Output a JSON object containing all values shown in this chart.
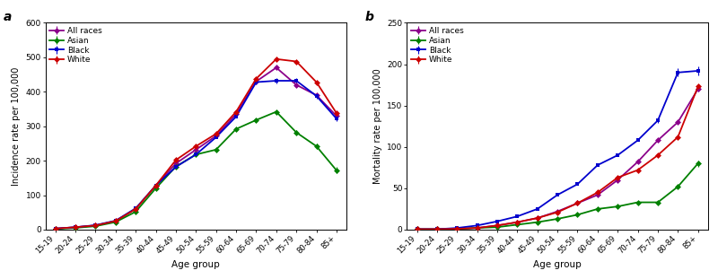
{
  "age_groups": [
    "15-19",
    "20-24",
    "25-29",
    "30-34",
    "35-39",
    "40-44",
    "45-49",
    "50-54",
    "55-59",
    "60-64",
    "65-69",
    "70-74",
    "75-79",
    "80-84",
    "85+"
  ],
  "panel_a": {
    "title": "a",
    "ylabel": "Incidence rate per 100,000",
    "xlabel": "Age group",
    "ylim": [
      0,
      600
    ],
    "yticks": [
      0,
      100,
      200,
      300,
      400,
      500,
      600
    ],
    "all_races": [
      3,
      7,
      12,
      25,
      60,
      128,
      192,
      232,
      272,
      335,
      430,
      470,
      420,
      390,
      330
    ],
    "asian": [
      2,
      5,
      10,
      22,
      52,
      120,
      183,
      218,
      232,
      292,
      318,
      342,
      282,
      242,
      172
    ],
    "black": [
      3,
      7,
      13,
      26,
      62,
      128,
      182,
      218,
      268,
      328,
      428,
      432,
      432,
      388,
      322
    ],
    "white": [
      3,
      7,
      12,
      25,
      60,
      128,
      202,
      242,
      278,
      342,
      438,
      495,
      488,
      428,
      338
    ],
    "all_races_err": [
      0,
      0,
      0,
      0,
      0,
      0,
      0,
      0,
      0,
      0,
      4,
      4,
      4,
      4,
      4
    ],
    "asian_err": [
      0,
      0,
      0,
      0,
      0,
      0,
      0,
      0,
      0,
      0,
      4,
      4,
      7,
      7,
      9
    ],
    "black_err": [
      0,
      0,
      0,
      0,
      0,
      0,
      0,
      0,
      0,
      0,
      7,
      7,
      7,
      7,
      7
    ],
    "white_err": [
      0,
      0,
      0,
      0,
      0,
      0,
      0,
      0,
      0,
      0,
      4,
      4,
      4,
      4,
      4
    ]
  },
  "panel_b": {
    "title": "b",
    "ylabel": "Mortality rate per 100,000",
    "xlabel": "Age group",
    "ylim": [
      0,
      250
    ],
    "yticks": [
      0,
      50,
      100,
      150,
      200,
      250
    ],
    "all_races": [
      0.5,
      0.5,
      1,
      2,
      5,
      9,
      14,
      22,
      32,
      42,
      60,
      82,
      108,
      130,
      170
    ],
    "asian": [
      0.5,
      0.5,
      1,
      2,
      3,
      6,
      9,
      13,
      18,
      25,
      28,
      33,
      33,
      52,
      80
    ],
    "black": [
      0.5,
      0.5,
      2,
      5,
      10,
      16,
      25,
      42,
      55,
      78,
      90,
      108,
      132,
      190,
      192
    ],
    "white": [
      0.5,
      0.5,
      1,
      2,
      5,
      9,
      14,
      21,
      32,
      45,
      63,
      72,
      90,
      112,
      173
    ],
    "all_races_err": [
      0,
      0,
      0,
      0,
      0,
      0,
      0,
      0,
      0,
      0,
      0,
      0,
      0,
      0,
      3
    ],
    "asian_err": [
      0,
      0,
      0,
      0,
      0,
      0,
      0,
      0,
      0,
      0,
      0,
      0,
      0,
      2,
      4
    ],
    "black_err": [
      0,
      0,
      0,
      0,
      0,
      0,
      0,
      0,
      0,
      0,
      0,
      0,
      3,
      5,
      5
    ],
    "white_err": [
      0,
      0,
      0,
      0,
      0,
      0,
      0,
      0,
      0,
      0,
      0,
      0,
      0,
      0,
      0
    ]
  },
  "colors": {
    "all_races": "#8B008B",
    "asian": "#008000",
    "black": "#0000CD",
    "white": "#CC0000"
  },
  "markersize": 3.5,
  "linewidth": 1.3,
  "background_color": "#ffffff"
}
